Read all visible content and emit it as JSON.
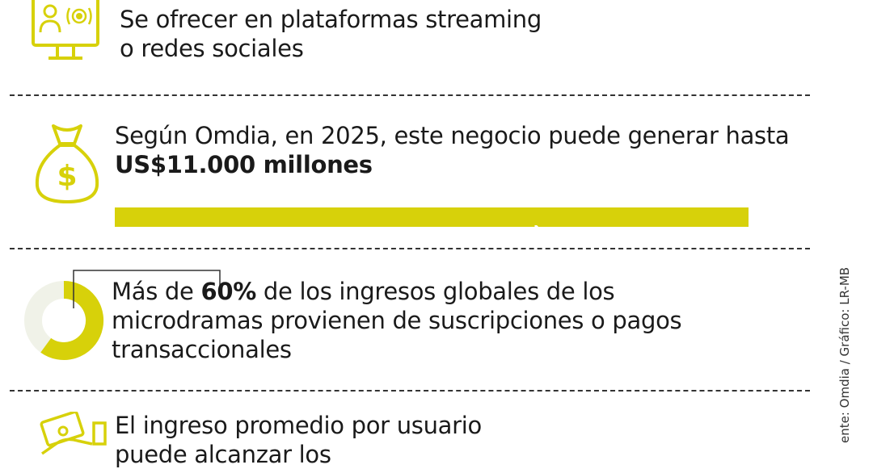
{
  "sections": {
    "streaming": {
      "icon": "streaming-monitor-icon",
      "line1": "Se ofrecer en plataformas streaming",
      "line2": "o redes sociales"
    },
    "revenue": {
      "icon": "money-bag-icon",
      "line1": "Según Omdia, en 2025, este negocio puede generar hasta",
      "highlight": "US$11.000 millones"
    },
    "share": {
      "icon": "donut-chart-icon",
      "prefix": "Más de ",
      "percent": "60%",
      "line1_rest": " de los ingresos globales de los",
      "line2": "microdramas provienen de suscripciones o pagos",
      "line3": "transaccionales",
      "value_pct": 60
    },
    "arpu": {
      "icon": "money-hand-icon",
      "line1": "El ingreso promedio por usuario",
      "line2": "puede alcanzar los"
    }
  },
  "credit": "ente: Omdia / Gráfico: LR-MB",
  "colors": {
    "accent": "#d7d10a",
    "light": "#f0f2e8",
    "text": "#1a1a1a"
  }
}
